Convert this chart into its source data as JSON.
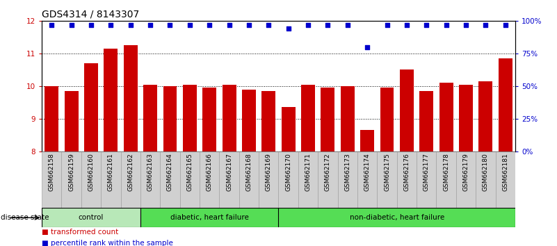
{
  "title": "GDS4314 / 8143307",
  "samples": [
    "GSM662158",
    "GSM662159",
    "GSM662160",
    "GSM662161",
    "GSM662162",
    "GSM662163",
    "GSM662164",
    "GSM662165",
    "GSM662166",
    "GSM662167",
    "GSM662168",
    "GSM662169",
    "GSM662170",
    "GSM662171",
    "GSM662172",
    "GSM662173",
    "GSM662174",
    "GSM662175",
    "GSM662176",
    "GSM662177",
    "GSM662178",
    "GSM662179",
    "GSM662180",
    "GSM662181"
  ],
  "bar_values": [
    10.0,
    9.85,
    10.7,
    11.15,
    11.25,
    10.05,
    10.0,
    10.05,
    9.95,
    10.05,
    9.9,
    9.85,
    9.35,
    10.05,
    9.95,
    10.0,
    8.65,
    9.95,
    10.5,
    9.85,
    10.1,
    10.05,
    10.15,
    10.85
  ],
  "percentile_values": [
    97,
    97,
    97,
    97,
    97,
    97,
    97,
    97,
    97,
    97,
    97,
    97,
    94,
    97,
    97,
    97,
    80,
    97,
    97,
    97,
    97,
    97,
    97,
    97
  ],
  "bar_color": "#cc0000",
  "percentile_color": "#0000cc",
  "ylim_left": [
    8,
    12
  ],
  "ylim_right": [
    0,
    100
  ],
  "yticks_left": [
    8,
    9,
    10,
    11,
    12
  ],
  "yticks_right": [
    0,
    25,
    50,
    75,
    100
  ],
  "grid_values": [
    9,
    10,
    11
  ],
  "group_info": [
    {
      "label": "control",
      "start": 0,
      "end": 5,
      "color": "#b8e8b8"
    },
    {
      "label": "diabetic, heart failure",
      "start": 5,
      "end": 12,
      "color": "#55dd55"
    },
    {
      "label": "non-diabetic, heart failure",
      "start": 12,
      "end": 24,
      "color": "#55dd55"
    }
  ],
  "disease_state_label": "disease state",
  "legend_items": [
    {
      "label": "transformed count",
      "color": "#cc0000"
    },
    {
      "label": "percentile rank within the sample",
      "color": "#0000cc"
    }
  ],
  "background_color": "#ffffff",
  "plot_bg_color": "#ffffff",
  "title_fontsize": 10,
  "tick_fontsize": 7.5,
  "sample_fontsize": 6.5
}
